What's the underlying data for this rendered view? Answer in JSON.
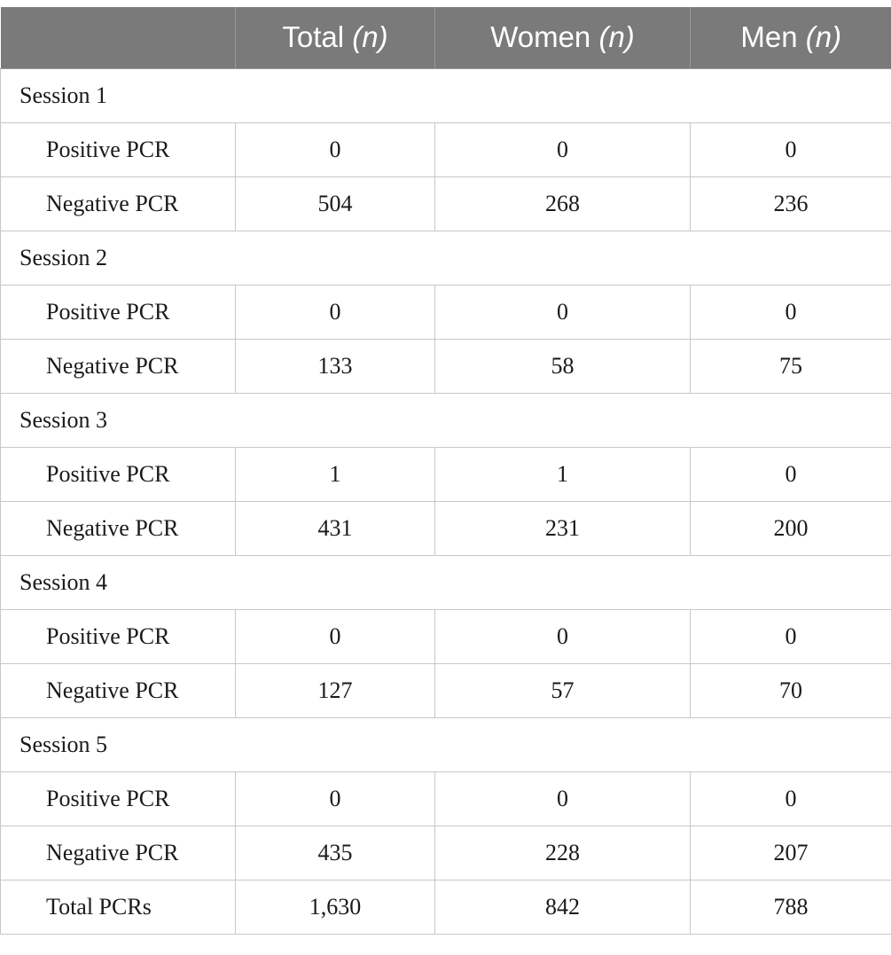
{
  "header": {
    "blank": "",
    "total_label": "Total",
    "women_label": "Women",
    "men_label": "Men",
    "unit": "(n)"
  },
  "sessions": [
    {
      "label": "Session 1",
      "rows": [
        {
          "label": "Positive PCR",
          "total": "0",
          "women": "0",
          "men": "0"
        },
        {
          "label": "Negative PCR",
          "total": "504",
          "women": "268",
          "men": "236"
        }
      ]
    },
    {
      "label": "Session 2",
      "rows": [
        {
          "label": "Positive PCR",
          "total": "0",
          "women": "0",
          "men": "0"
        },
        {
          "label": "Negative PCR",
          "total": "133",
          "women": "58",
          "men": "75"
        }
      ]
    },
    {
      "label": "Session 3",
      "rows": [
        {
          "label": "Positive PCR",
          "total": "1",
          "women": "1",
          "men": "0"
        },
        {
          "label": "Negative PCR",
          "total": "431",
          "women": "231",
          "men": "200"
        }
      ]
    },
    {
      "label": "Session 4",
      "rows": [
        {
          "label": "Positive PCR",
          "total": "0",
          "women": "0",
          "men": "0"
        },
        {
          "label": "Negative PCR",
          "total": "127",
          "women": "57",
          "men": "70"
        }
      ]
    },
    {
      "label": "Session 5",
      "rows": [
        {
          "label": "Positive PCR",
          "total": "0",
          "women": "0",
          "men": "0"
        },
        {
          "label": "Negative PCR",
          "total": "435",
          "women": "228",
          "men": "207"
        }
      ]
    }
  ],
  "totals": {
    "label": "Total PCRs",
    "total": "1,630",
    "women": "842",
    "men": "788"
  }
}
